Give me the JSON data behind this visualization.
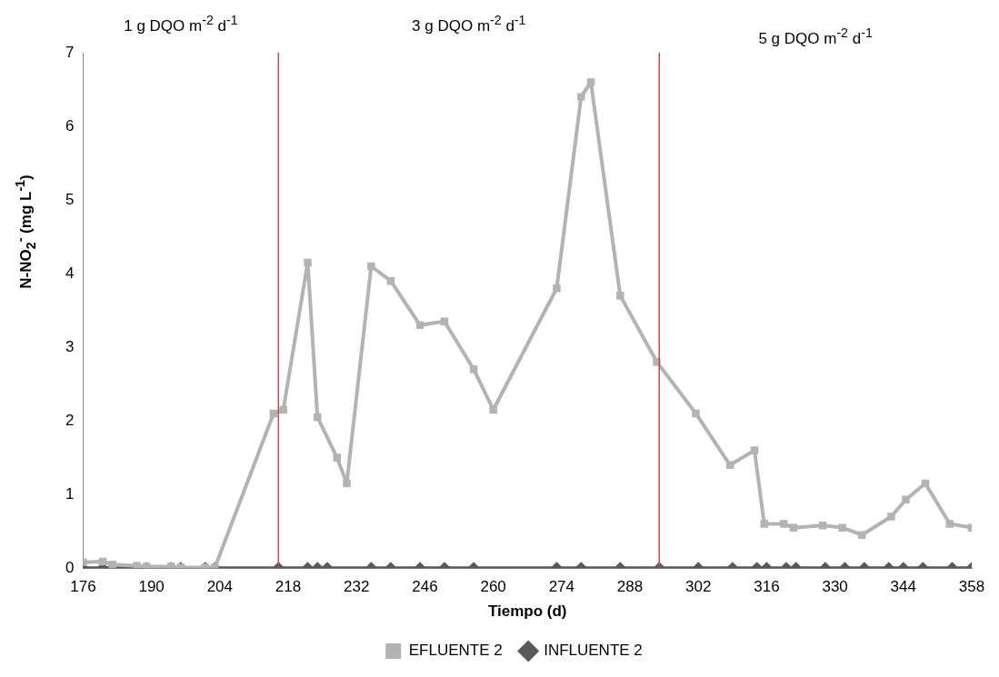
{
  "chart_data": {
    "type": "line",
    "xlabel": "Tiempo (d)",
    "ylabel": "N-NO$_{2}$$^{-}$ (mg L$^{-1}$)",
    "annotations": [
      "1 g DQO m$^{-2}$ d$^{-1}$",
      "3 g DQO m$^{-2}$ d$^{-1}$",
      "5 g DQO m$^{-2}$ d$^{-1}$"
    ],
    "xlim": [
      176,
      358
    ],
    "xticks": [
      176,
      190,
      204,
      218,
      232,
      246,
      260,
      274,
      288,
      302,
      316,
      330,
      344,
      358
    ],
    "ylim": [
      0,
      7
    ],
    "yticks": [
      0,
      1,
      2,
      3,
      4,
      5,
      6,
      7
    ],
    "grid": false,
    "legend": "bottom",
    "line_style": "solid",
    "ref_lines": [
      {
        "axis": "x",
        "value": 216,
        "label": null,
        "color": "#c0504d"
      },
      {
        "axis": "x",
        "value": 294,
        "label": null,
        "color": "#c0504d"
      }
    ],
    "series": [
      {
        "name": "INFLUENTE 2",
        "color": "#595959",
        "marker": "diamond",
        "x": [
          176,
          180,
          182,
          187,
          189,
          194,
          196,
          201,
          203,
          216,
          222,
          224,
          226,
          235,
          239,
          245,
          250,
          256,
          273,
          278,
          286,
          294,
          302,
          309,
          314,
          316,
          320,
          322,
          328,
          332,
          336,
          341,
          344,
          348,
          354,
          358
        ],
        "values": [
          0,
          0,
          0,
          0,
          0,
          0,
          0,
          0,
          0,
          0,
          0,
          0,
          0,
          0,
          0,
          0,
          0,
          0,
          0,
          0,
          0,
          0,
          0,
          0,
          0,
          0,
          0,
          0,
          0,
          0,
          0,
          0,
          0,
          0,
          0,
          0
        ]
      },
      {
        "name": "EFLUENTE 2",
        "color": "#b3b3b3",
        "marker": "square",
        "x": [
          176,
          180,
          182,
          187,
          189,
          194,
          196,
          201,
          203,
          215,
          217,
          222,
          224,
          228,
          230,
          235,
          239,
          245,
          250,
          256,
          260,
          273,
          278,
          280,
          286,
          293.5,
          301.5,
          308.5,
          313.5,
          315.5,
          319.5,
          321.5,
          327.5,
          331.5,
          335.5,
          341.5,
          344.5,
          348.5,
          353.5,
          358
        ],
        "values": [
          0.08,
          0.09,
          0.05,
          0.03,
          0.02,
          0.02,
          0.01,
          0.01,
          0.01,
          2.1,
          2.15,
          4.15,
          2.05,
          1.5,
          1.15,
          4.1,
          3.9,
          3.3,
          3.35,
          2.7,
          2.15,
          3.8,
          6.4,
          6.6,
          3.7,
          2.8,
          2.1,
          1.4,
          1.6,
          0.6,
          0.6,
          0.55,
          0.58,
          0.55,
          0.45,
          0.7,
          0.93,
          1.15,
          0.6,
          0.55
        ]
      }
    ]
  }
}
